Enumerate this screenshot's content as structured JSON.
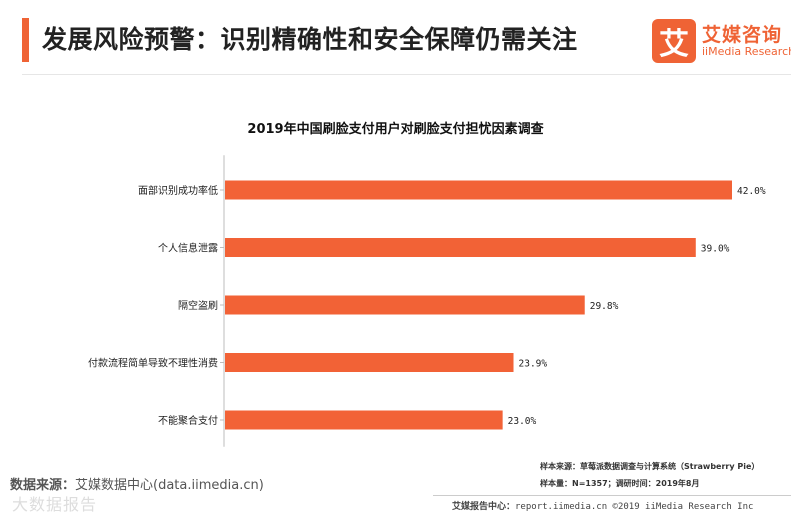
{
  "header": {
    "title": "发展风险预警：识别精确性和安全保障仍需关注",
    "accent_color": "#ef6335"
  },
  "logo": {
    "mark": "艾",
    "cn": "艾媒咨询",
    "en": "iiMedia Research"
  },
  "chart_data": {
    "type": "bar",
    "orientation": "horizontal",
    "title": "2019年中国刷脸支付用户对刷脸支付担忧因素调查",
    "categories": [
      "面部识别成功率低",
      "个人信息泄露",
      "隔空盗刷",
      "付款流程简单导致不理性消费",
      "不能聚合支付"
    ],
    "values": [
      42.0,
      39.0,
      29.8,
      23.9,
      23.0
    ],
    "value_labels": [
      "42.0%",
      "39.0%",
      "29.8%",
      "23.9%",
      "23.0%"
    ],
    "bar_color": "#f26236",
    "xlim": [
      0,
      42.0
    ],
    "grid": false,
    "legend": "none"
  },
  "footer": {
    "source_label": "数据来源：",
    "source_value": "艾媒数据中心(data.iimedia.cn)",
    "watermark": "大数据报告",
    "note_sample_source": "样本来源：草莓派数据调查与计算系统（Strawberry Pie）",
    "note_sample_size": "样本量：N=1357；调研时间：2019年8月",
    "report_center_label": "艾媒报告中心：",
    "report_center_value": "report.iimedia.cn  ©2019  iiMedia Research  Inc"
  }
}
